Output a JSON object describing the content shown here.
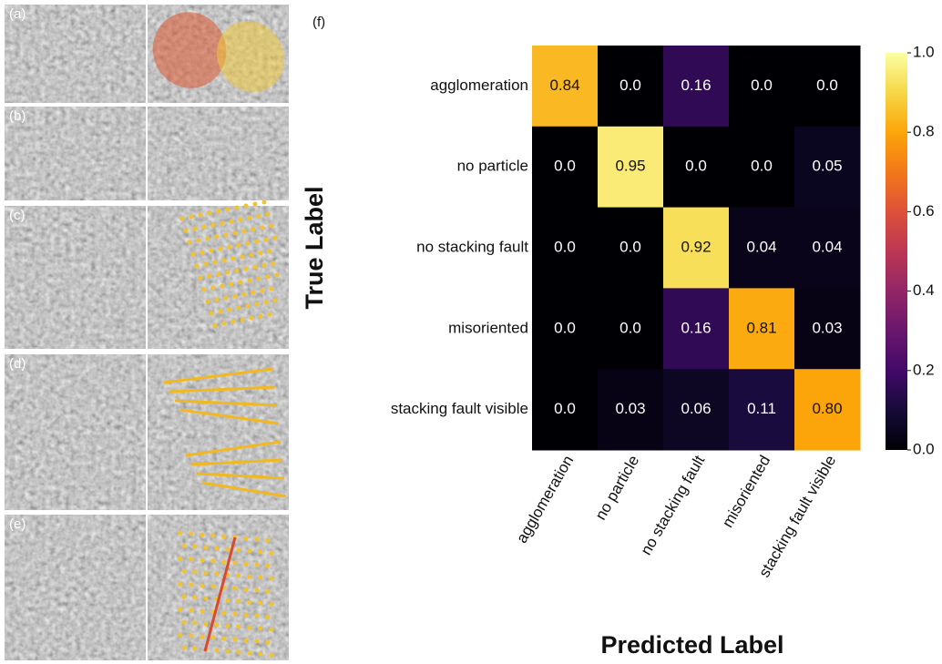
{
  "figure": {
    "panels": [
      "(a)",
      "(b)",
      "(c)",
      "(d)",
      "(e)",
      "(f)"
    ]
  },
  "chart_data": {
    "type": "heatmap",
    "colormap": "inferno",
    "xlabel": "Predicted Label",
    "ylabel": "True Label",
    "x_categories": [
      "agglomeration",
      "no particle",
      "no stacking fault",
      "misoriented",
      "stacking fault visible"
    ],
    "y_categories": [
      "agglomeration",
      "no particle",
      "no stacking fault",
      "misoriented",
      "stacking fault visible"
    ],
    "values": [
      [
        0.84,
        0,
        0.16,
        0,
        0
      ],
      [
        0,
        0.95,
        0,
        0,
        0.05
      ],
      [
        0,
        0,
        0.92,
        0.04,
        0.04
      ],
      [
        0,
        0,
        0.16,
        0.81,
        0.03
      ],
      [
        0,
        0.03,
        0.06,
        0.11,
        0.8
      ]
    ],
    "value_labels": [
      [
        "0.84",
        "0.0",
        "0.16",
        "0.0",
        "0.0"
      ],
      [
        "0.0",
        "0.95",
        "0.0",
        "0.0",
        "0.05"
      ],
      [
        "0.0",
        "0.0",
        "0.92",
        "0.04",
        "0.04"
      ],
      [
        "0.0",
        "0.0",
        "0.16",
        "0.81",
        "0.03"
      ],
      [
        "0.0",
        "0.03",
        "0.06",
        "0.11",
        "0.80"
      ]
    ],
    "clim": [
      0,
      1
    ],
    "cticks": [
      {
        "value": 0,
        "label": "0.0"
      },
      0.2,
      0.4,
      0.6,
      0.8,
      {
        "value": 1,
        "label": "1.0"
      }
    ]
  }
}
